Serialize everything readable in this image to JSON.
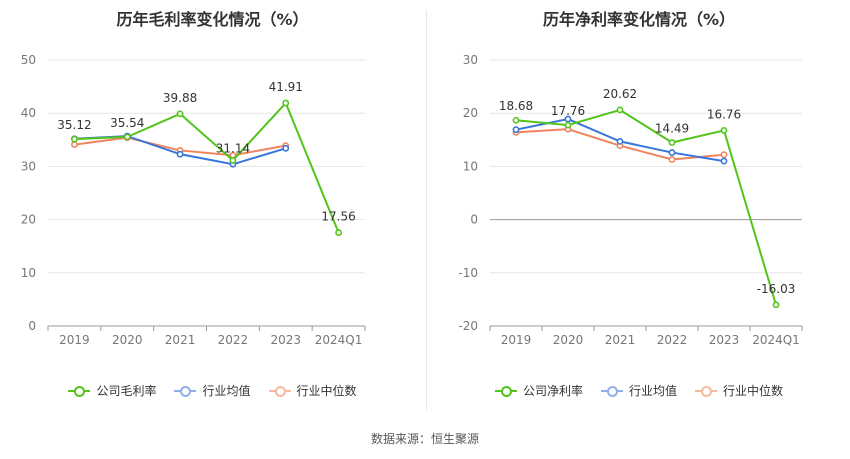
{
  "chart_data": [
    {
      "type": "line",
      "title": "历年毛利率变化情况（%）",
      "categories": [
        "2019",
        "2020",
        "2021",
        "2022",
        "2023",
        "2024Q1"
      ],
      "ylim": [
        0,
        50
      ],
      "yticks": [
        0,
        10,
        20,
        30,
        40,
        50
      ],
      "grid": true,
      "legend_position": "bottom",
      "series": [
        {
          "name": "公司毛利率",
          "color": "#52c41a",
          "values": [
            35.12,
            35.54,
            39.88,
            31.14,
            41.91,
            17.56
          ],
          "labels": [
            "35.12",
            "35.54",
            "39.88",
            "31.14",
            "41.91",
            "17.56"
          ]
        },
        {
          "name": "行业均值",
          "color": "#3a75d9",
          "values": [
            35.2,
            35.7,
            32.3,
            30.4,
            33.4,
            null
          ]
        },
        {
          "name": "行业中位数",
          "color": "#f0845d",
          "values": [
            34.1,
            35.4,
            33.0,
            32.1,
            33.9,
            null
          ]
        }
      ]
    },
    {
      "type": "line",
      "title": "历年净利率变化情况（%）",
      "categories": [
        "2019",
        "2020",
        "2021",
        "2022",
        "2023",
        "2024Q1"
      ],
      "ylim": [
        -20,
        30
      ],
      "yticks": [
        -20,
        -10,
        0,
        10,
        20,
        30
      ],
      "grid": true,
      "legend_position": "bottom",
      "series": [
        {
          "name": "公司净利率",
          "color": "#52c41a",
          "values": [
            18.68,
            17.76,
            20.62,
            14.49,
            16.76,
            -16.03
          ],
          "labels": [
            "18.68",
            "17.76",
            "20.62",
            "14.49",
            "16.76",
            "-16.03"
          ]
        },
        {
          "name": "行业均值",
          "color": "#3a75d9",
          "values": [
            16.9,
            18.9,
            14.7,
            12.6,
            11.0,
            null
          ]
        },
        {
          "name": "行业中位数",
          "color": "#f0845d",
          "values": [
            16.4,
            17.0,
            13.9,
            11.3,
            12.2,
            null
          ]
        }
      ]
    }
  ],
  "legend_colors": {
    "company": "#52c41a",
    "avg": "#8fb0e8",
    "median": "#f5b9a0"
  },
  "source": "数据来源：恒生聚源"
}
